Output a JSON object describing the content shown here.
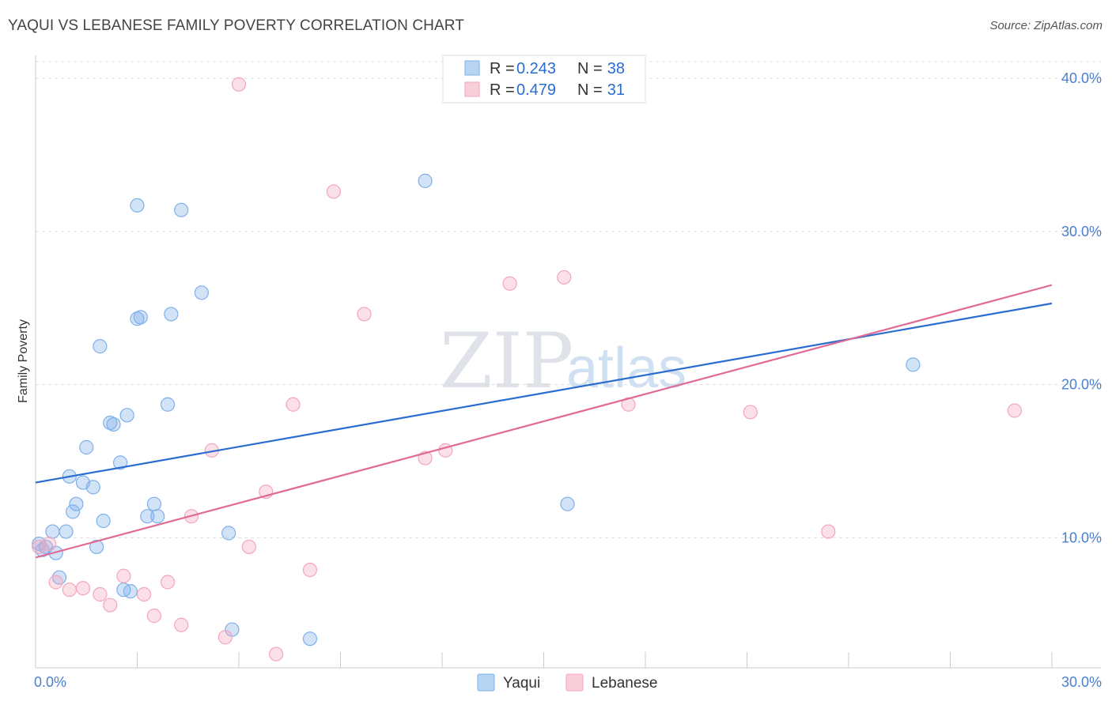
{
  "title": "YAQUI VS LEBANESE FAMILY POVERTY CORRELATION CHART",
  "source": "Source: ZipAtlas.com",
  "watermark": {
    "zip": "ZIP",
    "atlas": "atlas"
  },
  "chart_data": {
    "type": "scatter",
    "xlabel": "",
    "ylabel": "Family Poverty",
    "xlim": [
      0,
      30
    ],
    "ylim": [
      1.5,
      41.5
    ],
    "x_tick_labels": [
      {
        "value": 0,
        "label": "0.0%"
      },
      {
        "value": 30,
        "label": "30.0%"
      }
    ],
    "y_ticks": [
      {
        "value": 10,
        "label": "10.0%"
      },
      {
        "value": 20,
        "label": "20.0%"
      },
      {
        "value": 30,
        "label": "30.0%"
      },
      {
        "value": 40,
        "label": "40.0%"
      }
    ],
    "x_minor_ticks": [
      0,
      3,
      6,
      9,
      12,
      15,
      18,
      21,
      24,
      27,
      30
    ],
    "grid": "horizontal dashed",
    "legend": {
      "placement": "top-center",
      "entries": [
        {
          "r_label": "R = ",
          "r_value": "0.243",
          "n_label": "N = ",
          "n_value": "38"
        },
        {
          "r_label": "R = ",
          "r_value": "0.479",
          "n_label": "N = ",
          "n_value": "31"
        }
      ]
    },
    "series": [
      {
        "name": "Yaqui",
        "color": "#7eb0ea",
        "line_color": "#2a6dd0",
        "trend": {
          "x": [
            0,
            30
          ],
          "y": [
            13.6,
            25.3
          ]
        },
        "points": [
          [
            0.1,
            9.6
          ],
          [
            0.3,
            9.4
          ],
          [
            0.6,
            9.0
          ],
          [
            0.5,
            10.4
          ],
          [
            0.9,
            10.4
          ],
          [
            1.0,
            14.0
          ],
          [
            1.1,
            11.7
          ],
          [
            1.2,
            12.2
          ],
          [
            0.7,
            7.4
          ],
          [
            1.4,
            13.6
          ],
          [
            1.5,
            15.9
          ],
          [
            1.7,
            13.3
          ],
          [
            1.8,
            9.4
          ],
          [
            1.9,
            22.5
          ],
          [
            2.0,
            11.1
          ],
          [
            2.2,
            17.5
          ],
          [
            2.3,
            17.4
          ],
          [
            2.5,
            14.9
          ],
          [
            2.6,
            6.6
          ],
          [
            2.7,
            18.0
          ],
          [
            2.8,
            6.5
          ],
          [
            3.0,
            24.3
          ],
          [
            3.0,
            31.7
          ],
          [
            3.1,
            24.4
          ],
          [
            3.3,
            11.4
          ],
          [
            3.5,
            12.2
          ],
          [
            3.6,
            11.4
          ],
          [
            3.9,
            18.7
          ],
          [
            4.0,
            24.6
          ],
          [
            4.3,
            31.4
          ],
          [
            4.9,
            26.0
          ],
          [
            5.7,
            10.3
          ],
          [
            5.8,
            4.0
          ],
          [
            8.1,
            3.4
          ],
          [
            11.5,
            33.3
          ],
          [
            15.7,
            12.2
          ],
          [
            25.9,
            21.3
          ],
          [
            0.2,
            9.2
          ]
        ]
      },
      {
        "name": "Lebanese",
        "color": "#f3a5bd",
        "line_color": "#e06a94",
        "trend": {
          "x": [
            0,
            30
          ],
          "y": [
            8.7,
            26.5
          ]
        },
        "points": [
          [
            0.1,
            9.4
          ],
          [
            0.4,
            9.6
          ],
          [
            0.6,
            7.1
          ],
          [
            1.0,
            6.6
          ],
          [
            1.4,
            6.7
          ],
          [
            1.9,
            6.3
          ],
          [
            2.2,
            5.6
          ],
          [
            2.6,
            7.5
          ],
          [
            3.2,
            6.3
          ],
          [
            3.5,
            4.9
          ],
          [
            3.9,
            7.1
          ],
          [
            4.3,
            4.3
          ],
          [
            4.6,
            11.4
          ],
          [
            5.2,
            15.7
          ],
          [
            5.6,
            3.5
          ],
          [
            6.3,
            9.4
          ],
          [
            6.8,
            13.0
          ],
          [
            7.1,
            2.4
          ],
          [
            7.6,
            18.7
          ],
          [
            6.0,
            39.6
          ],
          [
            8.1,
            7.9
          ],
          [
            8.8,
            32.6
          ],
          [
            9.7,
            24.6
          ],
          [
            11.5,
            15.2
          ],
          [
            12.1,
            15.7
          ],
          [
            14.0,
            26.6
          ],
          [
            15.6,
            27.0
          ],
          [
            17.5,
            18.7
          ],
          [
            21.1,
            18.2
          ],
          [
            23.4,
            10.4
          ],
          [
            28.9,
            18.3
          ]
        ]
      }
    ]
  }
}
